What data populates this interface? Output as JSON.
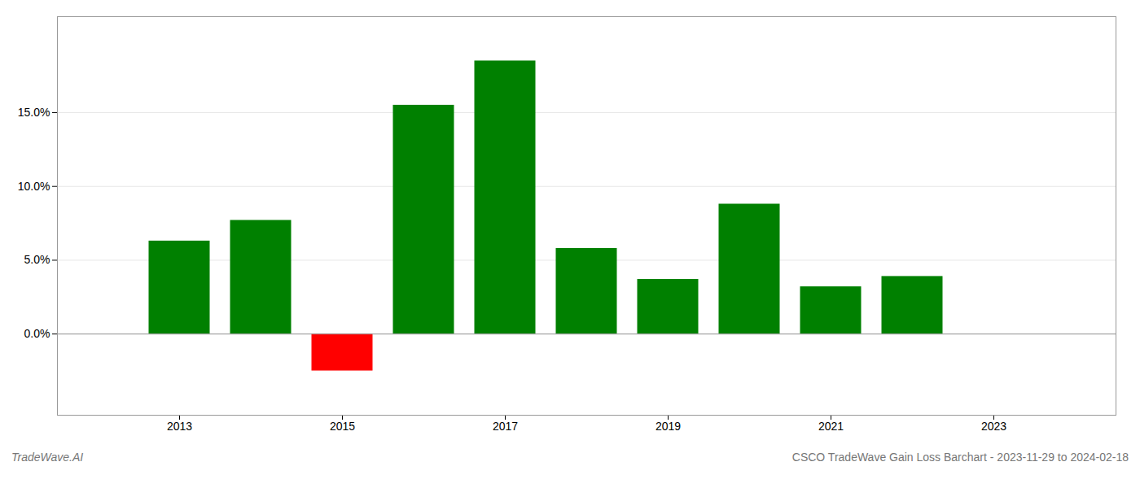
{
  "chart_data": {
    "type": "bar",
    "x": [
      2013,
      2014,
      2015,
      2016,
      2017,
      2018,
      2019,
      2020,
      2021,
      2022
    ],
    "values": [
      0.063,
      0.077,
      -0.025,
      0.155,
      0.185,
      0.058,
      0.037,
      0.088,
      0.032,
      0.039
    ],
    "colors": [
      "#008000",
      "#008000",
      "#ff0000",
      "#008000",
      "#008000",
      "#008000",
      "#008000",
      "#008000",
      "#008000",
      "#008000"
    ],
    "xlim": [
      2011.5,
      2024.5
    ],
    "xticks": [
      2013,
      2015,
      2017,
      2019,
      2021,
      2023
    ],
    "ylim": [
      -0.055,
      0.215
    ],
    "yticks": [
      {
        "value": 0.0,
        "label": "0.0%"
      },
      {
        "value": 0.05,
        "label": "5.0%"
      },
      {
        "value": 0.1,
        "label": "10.0%"
      },
      {
        "value": 0.15,
        "label": "15.0%"
      }
    ],
    "grid": true,
    "annotations": [
      "TradeWave.AI",
      "CSCO TradeWave Gain Loss Barchart - 2023-11-29 to 2024-02-18"
    ]
  }
}
